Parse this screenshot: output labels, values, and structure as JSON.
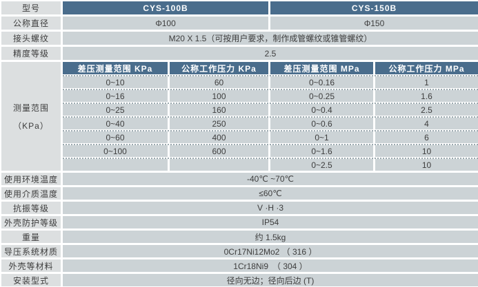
{
  "colors": {
    "header_blue": "#4a6d8c",
    "cell_gray": "#ccd3d6",
    "label_gray": "#dcdfe0",
    "header_text": "#ffffff",
    "body_text": "#3d3d3d"
  },
  "table": {
    "top_rows": [
      {
        "label": "型号",
        "value1": "CYS-100B",
        "value2": "CYS-150B"
      },
      {
        "label": "公称直径",
        "value1": "Φ100",
        "value2": "Φ150"
      },
      {
        "label": "接头螺纹",
        "merged": "M20 X 1.5（可按用户要求，制作成管螺纹或锥管螺纹）"
      },
      {
        "label": "精度等级",
        "merged": "2.5"
      }
    ],
    "measure": {
      "label_line1": "测量范围",
      "label_line2": "（KPa）",
      "headers": [
        "差压测量范围  KPa",
        "公称工作压力  KPa",
        "差压测量范围  MPa",
        "公称工作压力  MPa"
      ],
      "rows": [
        {
          "c0": "0~10",
          "c1": "60",
          "c2": "0~0.16",
          "c3": "1"
        },
        {
          "c0": "0~16",
          "c1": "100",
          "c2": "0~0.25",
          "c3": "1.6"
        },
        {
          "c0": "0~25",
          "c1": "160",
          "c2": "0~0.4",
          "c3": "2.5"
        },
        {
          "c0": "0~40",
          "c1": "250",
          "c2": "0~0.6",
          "c3": "4"
        },
        {
          "c0": "0~60",
          "c1": "400",
          "c2": "0~1",
          "c3": "6"
        },
        {
          "c0": "0~100",
          "c1": "600",
          "c2": "0~1.6",
          "c3": "10"
        },
        {
          "c0": "",
          "c1": "",
          "c2": "0~2.5",
          "c3": "10"
        }
      ]
    },
    "bottom_rows": [
      {
        "label": "使用环境温度",
        "value": "-40℃ ~70℃"
      },
      {
        "label": "使用介质温度",
        "value": "≤60℃"
      },
      {
        "label": "抗振等级",
        "value": "V ·H ·3"
      },
      {
        "label": "外壳防护等级",
        "value": "IP54"
      },
      {
        "label": "重量",
        "value": "约 1.5kg"
      },
      {
        "label": "导压系统材质",
        "value": "0Cr17Ni12Mo2 （ 316 ）"
      },
      {
        "label": "外壳等材料",
        "value": "1Cr18Ni9　（ 304 ）"
      },
      {
        "label": "安装型式",
        "value": "径向无边；径向后边 (T)"
      }
    ]
  }
}
